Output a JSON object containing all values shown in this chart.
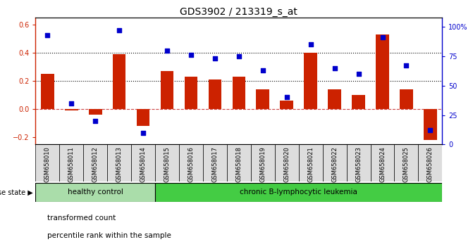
{
  "title": "GDS3902 / 213319_s_at",
  "samples": [
    "GSM658010",
    "GSM658011",
    "GSM658012",
    "GSM658013",
    "GSM658014",
    "GSM658015",
    "GSM658016",
    "GSM658017",
    "GSM658018",
    "GSM658019",
    "GSM658020",
    "GSM658021",
    "GSM658022",
    "GSM658023",
    "GSM658024",
    "GSM658025",
    "GSM658026"
  ],
  "bar_values": [
    0.25,
    -0.01,
    -0.04,
    0.39,
    -0.12,
    0.27,
    0.23,
    0.21,
    0.23,
    0.14,
    0.06,
    0.4,
    0.14,
    0.1,
    0.53,
    0.14,
    -0.22
  ],
  "scatter_values": [
    93,
    35,
    20,
    97,
    10,
    80,
    76,
    73,
    75,
    63,
    40,
    85,
    65,
    60,
    91,
    67,
    12
  ],
  "bar_color": "#cc2200",
  "scatter_color": "#0000cc",
  "healthy_count": 5,
  "healthy_label": "healthy control",
  "healthy_color": "#aaddaa",
  "leukemia_label": "chronic B-lymphocytic leukemia",
  "leukemia_color": "#44cc44",
  "disease_state_label": "disease state",
  "ylim_left": [
    -0.25,
    0.65
  ],
  "ylim_right": [
    0,
    108
  ],
  "yticks_left": [
    -0.2,
    0.0,
    0.2,
    0.4,
    0.6
  ],
  "yticks_right": [
    0,
    25,
    50,
    75,
    100
  ],
  "ytick_right_labels": [
    "0",
    "25",
    "50",
    "75",
    "100%"
  ],
  "hlines": [
    0.2,
    0.4
  ],
  "zero_line_color": "#cc4444",
  "legend_bar_label": "transformed count",
  "legend_scatter_label": "percentile rank within the sample",
  "title_fontsize": 10,
  "tick_fontsize": 7,
  "label_fontsize": 7
}
